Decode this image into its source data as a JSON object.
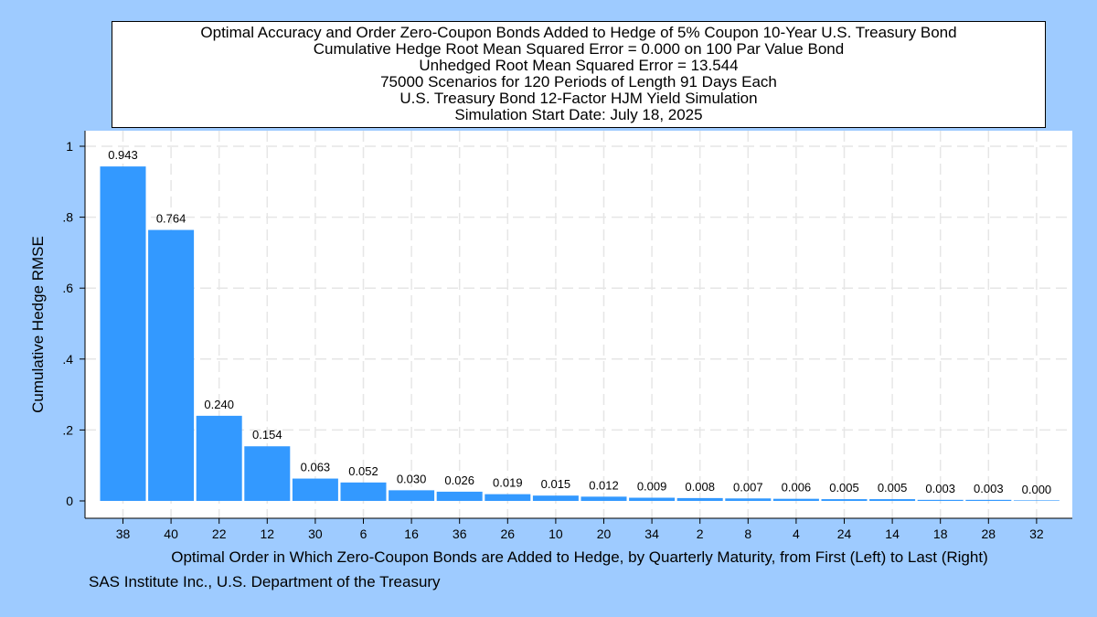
{
  "chart_data": {
    "type": "bar",
    "title_lines": [
      "Optimal Accuracy and Order Zero-Coupon Bonds Added to Hedge of 5% Coupon 10-Year U.S. Treasury Bond",
      "Cumulative Hedge Root Mean Squared Error = 0.000 on 100 Par Value Bond",
      "Unhedged Root Mean Squared Error = 13.544",
      "75000 Scenarios for 120 Periods of Length 91 Days Each",
      "U.S. Treasury Bond 12-Factor HJM Yield Simulation",
      "Simulation Start Date: July 18, 2025"
    ],
    "xlabel": "Optimal Order in Which Zero-Coupon Bonds are Added to Hedge, by Quarterly Maturity, from First (Left) to Last (Right)",
    "ylabel": "Cumulative Hedge RMSE",
    "categories": [
      "38",
      "40",
      "22",
      "12",
      "30",
      "6",
      "16",
      "36",
      "26",
      "10",
      "20",
      "34",
      "2",
      "8",
      "4",
      "24",
      "14",
      "18",
      "28",
      "32"
    ],
    "values": [
      0.943,
      0.764,
      0.24,
      0.154,
      0.063,
      0.052,
      0.03,
      0.026,
      0.019,
      0.015,
      0.012,
      0.009,
      0.008,
      0.007,
      0.006,
      0.005,
      0.005,
      0.003,
      0.003,
      0.0
    ],
    "value_labels": [
      "0.943",
      "0.764",
      "0.240",
      "0.154",
      "0.063",
      "0.052",
      "0.030",
      "0.026",
      "0.019",
      "0.015",
      "0.012",
      "0.009",
      "0.008",
      "0.007",
      "0.006",
      "0.005",
      "0.005",
      "0.003",
      "0.003",
      "0.000"
    ],
    "ylim": [
      0,
      1
    ],
    "yticks": [
      0,
      0.2,
      0.4,
      0.6,
      0.8,
      1
    ],
    "ytick_labels": [
      "0",
      ".2",
      ".4",
      ".6",
      ".8",
      "1"
    ],
    "grid": true,
    "legend": "none",
    "bar_color": "#3399ff",
    "source": "SAS Institute Inc., U.S. Department of the Treasury"
  }
}
